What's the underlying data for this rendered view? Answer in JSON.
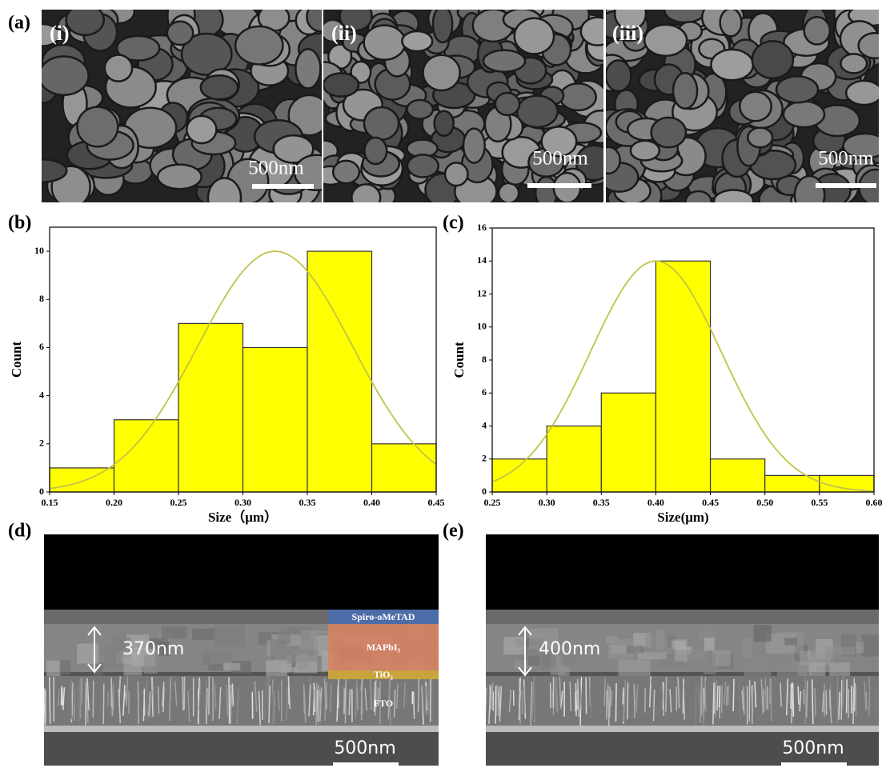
{
  "panels": {
    "a": "(a)",
    "b": "(b)",
    "c": "(c)",
    "d": "(d)",
    "e": "(e)"
  },
  "sem_top": [
    {
      "label": "(i)",
      "scale": "500nm"
    },
    {
      "label": "(ii)",
      "scale": "500nm"
    },
    {
      "label": "(iii)",
      "scale": "500nm"
    }
  ],
  "cross_section": [
    {
      "thickness": "370nm",
      "scale": "500nm",
      "layers": [
        "Spiro-oMeTAD",
        "MAPbI₃",
        "TiO₂",
        "FTO"
      ]
    },
    {
      "thickness": "400nm",
      "scale": "500nm"
    }
  ],
  "chart_data": [
    {
      "type": "histogram",
      "bins": [
        0.15,
        0.2,
        0.25,
        0.3,
        0.35,
        0.4,
        0.45
      ],
      "values": [
        1,
        3,
        7,
        6,
        10,
        2
      ],
      "color": "#ffff00",
      "fit": {
        "mean": 0.325,
        "sigma": 0.06,
        "amplitude": 10,
        "color": "#c2c24a"
      },
      "xlabel": "Size（μm）",
      "ylabel": "Count",
      "xlim": [
        0.15,
        0.45
      ],
      "ylim": [
        0,
        11
      ],
      "xticks": [
        0.15,
        {
          "value": 0.2,
          "label": "0.20"
        },
        0.25,
        {
          "value": 0.3,
          "label": "0.30"
        },
        0.35,
        {
          "value": 0.4,
          "label": "0.40"
        },
        0.45
      ],
      "yticks": [
        0,
        2,
        4,
        6,
        8,
        10
      ]
    },
    {
      "type": "histogram",
      "bins": [
        0.25,
        0.3,
        0.35,
        0.4,
        0.45,
        0.5,
        0.55,
        0.6
      ],
      "values": [
        2,
        4,
        6,
        14,
        2,
        1,
        1
      ],
      "color": "#ffff00",
      "fit": {
        "mean": 0.4,
        "sigma": 0.06,
        "amplitude": 14,
        "color": "#c2c24a"
      },
      "xlabel": "Size(μm)",
      "ylabel": "Count",
      "xlim": [
        0.25,
        0.6
      ],
      "ylim": [
        0,
        16
      ],
      "xticks": [
        0.25,
        {
          "value": 0.3,
          "label": "0.30"
        },
        0.35,
        {
          "value": 0.4,
          "label": "0.40"
        },
        0.45,
        {
          "value": 0.5,
          "label": "0.50"
        },
        0.55,
        {
          "value": 0.6,
          "label": "0.60"
        }
      ],
      "yticks": [
        0,
        2,
        4,
        6,
        8,
        10,
        12,
        14,
        16
      ]
    }
  ]
}
